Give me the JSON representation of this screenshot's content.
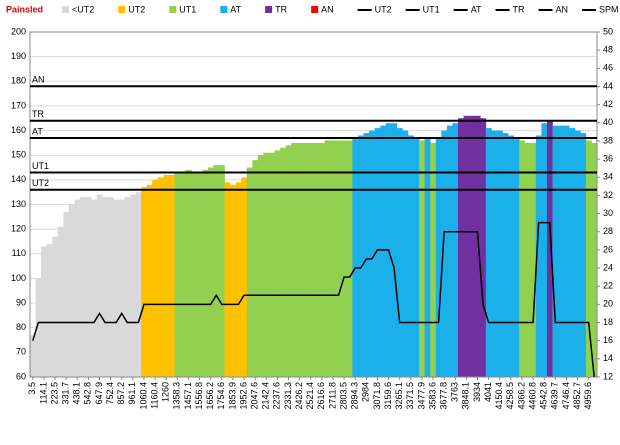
{
  "chart_data": {
    "type": "bar",
    "title": "Painsled",
    "categories": [
      "3.5",
      null,
      "114.1",
      null,
      "223.5",
      null,
      "331.7",
      null,
      "438.1",
      null,
      "542.8",
      null,
      "647.9",
      null,
      "752.4",
      null,
      "857.2",
      null,
      "961.1",
      null,
      "1060.4",
      null,
      "1160.4",
      null,
      "1260",
      null,
      "1358.3",
      null,
      "1457.1",
      null,
      "1556.8",
      null,
      "1656.2",
      null,
      "1754.6",
      null,
      "1853.9",
      null,
      "1952.6",
      null,
      "2047.6",
      null,
      "2142.4",
      null,
      "2237.6",
      null,
      "2331.3",
      null,
      "2426.2",
      null,
      "2521.4",
      null,
      "2616.6",
      null,
      "2711.8",
      null,
      "2803.5",
      null,
      "2894.3",
      null,
      "2984",
      null,
      "3071.8",
      null,
      "3159.6",
      null,
      "3265.1",
      null,
      "3371.5",
      null,
      "3477.9",
      null,
      "3583.6",
      null,
      "3677.8",
      null,
      "3763",
      null,
      "3848.1",
      null,
      "3934",
      null,
      "4041",
      null,
      "4150.4",
      null,
      "4258.5",
      null,
      "4366.2",
      null,
      "4460.8",
      null,
      "4542.8",
      null,
      "4639.7",
      null,
      "4746.4",
      null,
      "4852.7",
      null,
      "4959.6",
      null
    ],
    "zones": [
      {
        "name": "<UT2",
        "color": "#d9d9d9"
      },
      {
        "name": "UT2",
        "color": "#ffc000"
      },
      {
        "name": "UT1",
        "color": "#92d050"
      },
      {
        "name": "AT",
        "color": "#1cb0ea"
      },
      {
        "name": "TR",
        "color": "#7030a0"
      },
      {
        "name": "AN",
        "color": "#ff0000"
      }
    ],
    "thresholds": [
      {
        "name": "UT2",
        "value": 136
      },
      {
        "name": "UT1",
        "value": 143
      },
      {
        "name": "AT",
        "value": 157
      },
      {
        "name": "TR",
        "value": 164
      },
      {
        "name": "AN",
        "value": 178
      }
    ],
    "series": [
      {
        "values": [
          77,
          100,
          113,
          114,
          117,
          121,
          127,
          130,
          132,
          133,
          133,
          132,
          134,
          133,
          133,
          132,
          132,
          133,
          134,
          135,
          137,
          138,
          140,
          141,
          142,
          142,
          143,
          143,
          144,
          143,
          143,
          144,
          145,
          146,
          146,
          139,
          138,
          139,
          141,
          145,
          148,
          150,
          151,
          151,
          152,
          153,
          154,
          155,
          155,
          155,
          155,
          155,
          155,
          156,
          156,
          156,
          156,
          156,
          157,
          158,
          159,
          160,
          161,
          162,
          163,
          163,
          161,
          160,
          158,
          157,
          156,
          157,
          155,
          157,
          160,
          162,
          163,
          165,
          166,
          166,
          166,
          165,
          161,
          160,
          160,
          159,
          158,
          157,
          156,
          155,
          155,
          158,
          163,
          164,
          162,
          162,
          162,
          161,
          160,
          159,
          156,
          155
        ]
      },
      {
        "name": "SPM",
        "color": "#000000",
        "axis": "y2",
        "values": [
          16,
          18,
          18,
          18,
          18,
          18,
          18,
          18,
          18,
          18,
          18,
          18,
          19,
          18,
          18,
          18,
          19,
          18,
          18,
          18,
          20,
          20,
          20,
          20,
          20,
          20,
          20,
          20,
          20,
          20,
          20,
          20,
          20,
          21,
          20,
          20,
          20,
          20,
          21,
          21,
          21,
          21,
          21,
          21,
          21,
          21,
          21,
          21,
          21,
          21,
          21,
          21,
          21,
          21,
          21,
          21,
          23,
          23,
          24,
          24,
          25,
          25,
          26,
          26,
          26,
          24,
          18,
          18,
          18,
          18,
          18,
          18,
          18,
          18,
          28,
          28,
          28,
          28,
          28,
          28,
          28,
          20,
          18,
          18,
          18,
          18,
          18,
          18,
          18,
          18,
          18,
          29,
          29,
          29,
          18,
          18,
          18,
          18,
          18,
          18,
          18,
          12
        ]
      }
    ],
    "ylim": [
      60,
      200
    ],
    "yticks": [
      60,
      70,
      80,
      90,
      100,
      110,
      120,
      130,
      140,
      150,
      160,
      170,
      180,
      190,
      200
    ],
    "y2lim": [
      12,
      50
    ],
    "y2ticks": [
      12,
      14,
      16,
      18,
      20,
      22,
      24,
      26,
      28,
      30,
      32,
      34,
      36,
      38,
      40,
      42,
      44,
      46,
      48,
      50
    ],
    "grid": true
  }
}
